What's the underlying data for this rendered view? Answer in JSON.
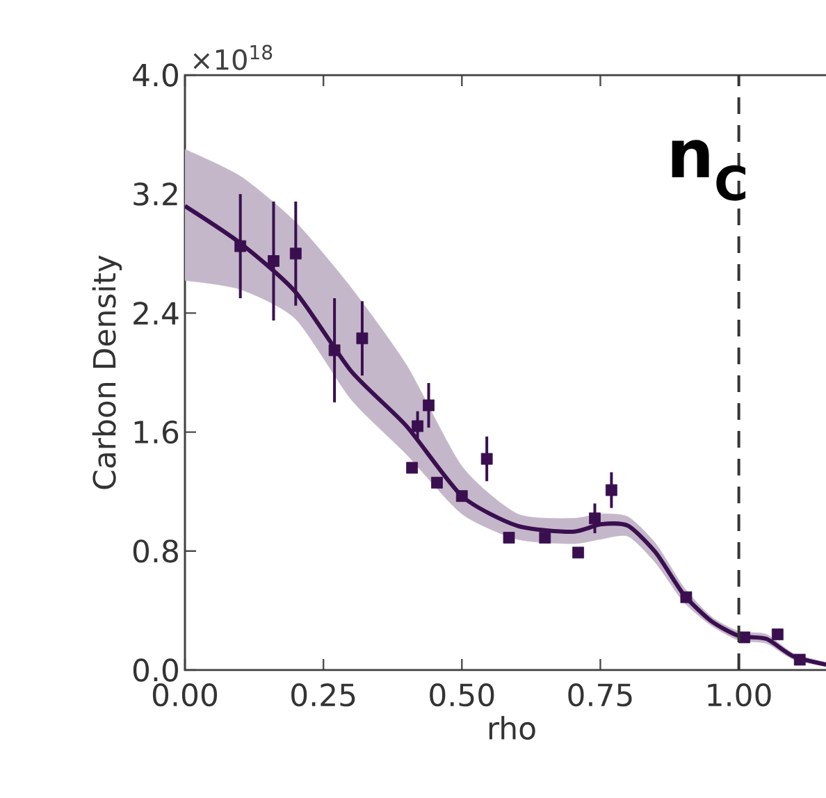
{
  "chart_data": {
    "type": "line",
    "xlabel": "rho",
    "ylabel": "Carbon Density",
    "annotations": [
      "×10$^{18}$",
      "n$_{C}$"
    ],
    "xlim": [
      0,
      1.18
    ],
    "ylim": [
      0,
      4.0
    ],
    "xticks": [
      {
        "value": 0,
        "label": "0.00"
      },
      {
        "value": 0.25,
        "label": "0.25"
      },
      {
        "value": 0.5,
        "label": "0.50"
      },
      {
        "value": 0.75,
        "label": "0.75"
      },
      {
        "value": 1.0,
        "label": "1.00"
      }
    ],
    "yticks": [
      {
        "value": 0,
        "label": "0.0"
      },
      {
        "value": 0.8,
        "label": "0.8"
      },
      {
        "value": 1.6,
        "label": "1.6"
      },
      {
        "value": 2.4,
        "label": "2.4"
      },
      {
        "value": 3.2,
        "label": "3.2"
      },
      {
        "value": 4.0,
        "label": "4.0"
      }
    ],
    "ref_lines": [
      {
        "axis": "x",
        "value": 1.0,
        "line_style": "dashed",
        "color": "#333333"
      }
    ],
    "series": [
      {
        "color": "#3a0f4f",
        "x": [
          0,
          0.1,
          0.2,
          0.3,
          0.4,
          0.5,
          0.6,
          0.7,
          0.75,
          0.8,
          0.85,
          0.9,
          0.95,
          1.0,
          1.05,
          1.1,
          1.18
        ],
        "values": [
          3.12,
          2.87,
          2.54,
          2.01,
          1.64,
          1.17,
          0.97,
          0.93,
          0.98,
          0.97,
          0.79,
          0.51,
          0.33,
          0.23,
          0.21,
          0.09,
          0.02
        ],
        "lower": [
          2.62,
          2.56,
          2.36,
          1.82,
          1.45,
          1.05,
          0.88,
          0.85,
          0.88,
          0.9,
          0.72,
          0.46,
          0.3,
          0.2,
          0.18,
          0.07,
          0.01
        ],
        "upper": [
          3.5,
          3.32,
          3.01,
          2.57,
          2.05,
          1.37,
          1.05,
          1.02,
          1.05,
          1.03,
          0.85,
          0.56,
          0.36,
          0.26,
          0.24,
          0.11,
          0.03
        ]
      },
      {
        "type": "scatter",
        "color": "#3a0f4f",
        "marker": "square",
        "x": [
          0.1,
          0.16,
          0.2,
          0.27,
          0.32,
          0.41,
          0.42,
          0.44,
          0.455,
          0.5,
          0.545,
          0.585,
          0.65,
          0.71,
          0.74,
          0.77,
          0.905,
          1.01,
          1.07,
          1.11
        ],
        "values": [
          2.85,
          2.75,
          2.8,
          2.15,
          2.23,
          1.36,
          1.64,
          1.78,
          1.26,
          1.17,
          1.42,
          0.89,
          0.89,
          0.79,
          1.02,
          1.21,
          0.49,
          0.22,
          0.24,
          0.07
        ],
        "errors": [
          0.35,
          0.4,
          0.35,
          0.35,
          0.25,
          null,
          0.1,
          0.15,
          null,
          null,
          0.15,
          null,
          null,
          null,
          0.1,
          0.12,
          null,
          null,
          null,
          null
        ]
      }
    ]
  }
}
